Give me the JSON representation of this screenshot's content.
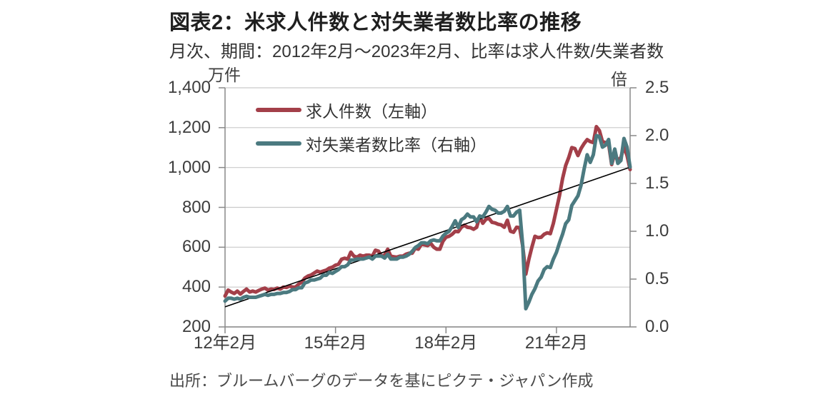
{
  "header": {
    "title": "図表2：米求人件数と対失業者数比率の推移",
    "subtitle": "月次、期間：2012年2月～2023年2月、比率は求人件数/失業者数"
  },
  "chart_data": {
    "type": "line",
    "title": "図表2：米求人件数と対失業者数比率の推移",
    "subtitle": "月次、期間：2012年2月～2023年2月、比率は求人件数/失業者数",
    "x_start": "2012-02",
    "x_end": "2023-02",
    "x_frequency": "monthly",
    "x_tick_labels": [
      "12年2月",
      "15年2月",
      "18年2月",
      "21年2月"
    ],
    "x_tick_month_index": [
      0,
      36,
      72,
      108
    ],
    "grid": "horizontal",
    "legend_position": "top-left-inside",
    "left_axis": {
      "unit": "万件",
      "min": 200,
      "max": 1400,
      "ticks": [
        "1,400",
        "1,200",
        "1,000",
        "800",
        "600",
        "400",
        "200"
      ]
    },
    "right_axis": {
      "unit": "倍",
      "min": 0,
      "max": 2.5,
      "ticks": [
        "2.5",
        "2.0",
        "1.5",
        "1.0",
        "0.5",
        "0.0"
      ]
    },
    "series": [
      {
        "name": "求人件数（左軸）",
        "axis": "left",
        "color": "#a33f49",
        "values": [
          355,
          385,
          375,
          368,
          380,
          365,
          378,
          390,
          375,
          380,
          375,
          383,
          390,
          395,
          385,
          390,
          388,
          395,
          390,
          400,
          398,
          405,
          400,
          400,
          415,
          425,
          445,
          455,
          460,
          470,
          480,
          475,
          480,
          485,
          495,
          500,
          510,
          515,
          540,
          545,
          540,
          575,
          555,
          550,
          560,
          555,
          560,
          560,
          555,
          585,
          580,
          555,
          560,
          590,
          555,
          552,
          550,
          555,
          555,
          565,
          570,
          570,
          595,
          590,
          615,
          612,
          608,
          620,
          600,
          590,
          590,
          630,
          650,
          655,
          665,
          680,
          678,
          700,
          710,
          700,
          698,
          690,
          700,
          755,
          720,
          740,
          745,
          725,
          722,
          715,
          712,
          700,
          735,
          680,
          675,
          700,
          698,
          605,
          465,
          540,
          600,
          655,
          648,
          650,
          665,
          672,
          668,
          720,
          790,
          860,
          945,
          1010,
          1050,
          1100,
          1095,
          1060,
          1095,
          1120,
          1140,
          1130,
          1125,
          1205,
          1185,
          1130,
          1125,
          1120,
          1015,
          1070,
          1035,
          1050,
          1105,
          1060,
          990
        ]
      },
      {
        "name": "対失業者数比率（右軸）",
        "axis": "right",
        "color": "#4b7a80",
        "values": [
          0.27,
          0.3,
          0.3,
          0.29,
          0.3,
          0.29,
          0.31,
          0.32,
          0.31,
          0.31,
          0.31,
          0.32,
          0.33,
          0.34,
          0.33,
          0.34,
          0.34,
          0.35,
          0.35,
          0.36,
          0.36,
          0.37,
          0.39,
          0.39,
          0.41,
          0.41,
          0.46,
          0.47,
          0.49,
          0.49,
          0.5,
          0.51,
          0.54,
          0.54,
          0.57,
          0.56,
          0.58,
          0.6,
          0.63,
          0.63,
          0.65,
          0.7,
          0.7,
          0.71,
          0.71,
          0.71,
          0.72,
          0.73,
          0.71,
          0.74,
          0.74,
          0.74,
          0.72,
          0.76,
          0.71,
          0.71,
          0.71,
          0.73,
          0.73,
          0.74,
          0.76,
          0.79,
          0.83,
          0.85,
          0.88,
          0.88,
          0.87,
          0.9,
          0.91,
          0.9,
          0.9,
          0.95,
          0.98,
          1.0,
          1.05,
          1.11,
          1.04,
          1.12,
          1.14,
          1.18,
          1.15,
          1.15,
          1.1,
          1.16,
          1.15,
          1.2,
          1.26,
          1.23,
          1.22,
          1.19,
          1.19,
          1.21,
          1.26,
          1.16,
          1.16,
          1.2,
          1.22,
          0.85,
          0.19,
          0.26,
          0.34,
          0.4,
          0.48,
          0.52,
          0.6,
          0.63,
          0.62,
          0.71,
          0.78,
          0.88,
          0.97,
          1.08,
          1.12,
          1.27,
          1.32,
          1.37,
          1.48,
          1.65,
          1.8,
          1.72,
          1.8,
          2.0,
          1.99,
          1.88,
          1.9,
          1.96,
          1.71,
          1.86,
          1.71,
          1.74,
          1.97,
          1.88,
          1.67
        ]
      }
    ],
    "trendline": {
      "axis": "right",
      "color": "#000000",
      "start_value": 0.21,
      "end_value": 1.67
    },
    "colors": {
      "grid": "#cacaca",
      "axis": "#888888",
      "text": "#3d3d3d"
    }
  },
  "footer": {
    "source": "出所：ブルームバーグのデータを基にピクテ・ジャパン作成"
  }
}
